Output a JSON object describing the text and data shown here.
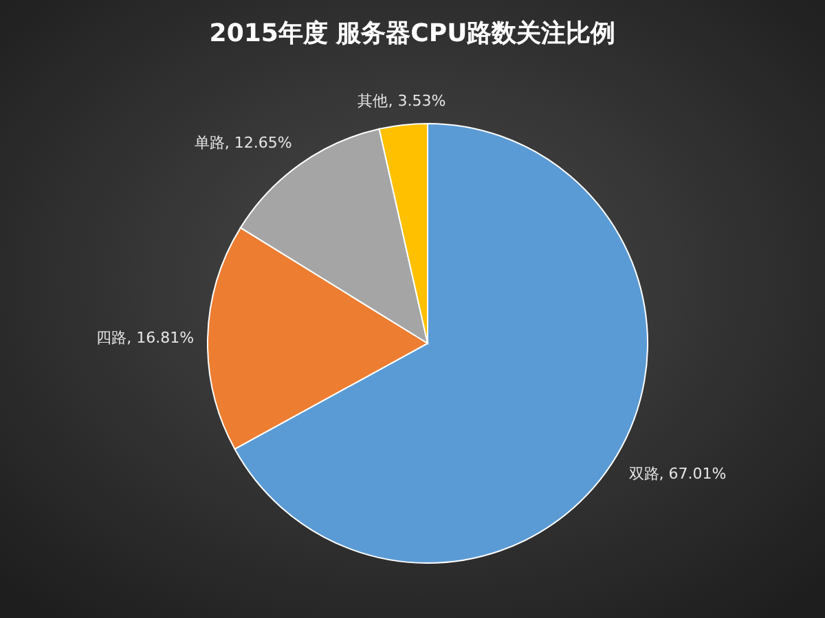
{
  "chart_data": {
    "type": "pie",
    "title": "2015年度 服务器CPU路数关注比例",
    "categories": [
      "双路",
      "四路",
      "单路",
      "其他"
    ],
    "values": [
      67.01,
      16.81,
      12.65,
      3.53
    ],
    "value_labels": [
      "67.01%",
      "16.81%",
      "12.65%",
      "3.53%"
    ],
    "colors": [
      "#5b9bd5",
      "#ed7d31",
      "#a5a5a5",
      "#ffc000"
    ]
  }
}
